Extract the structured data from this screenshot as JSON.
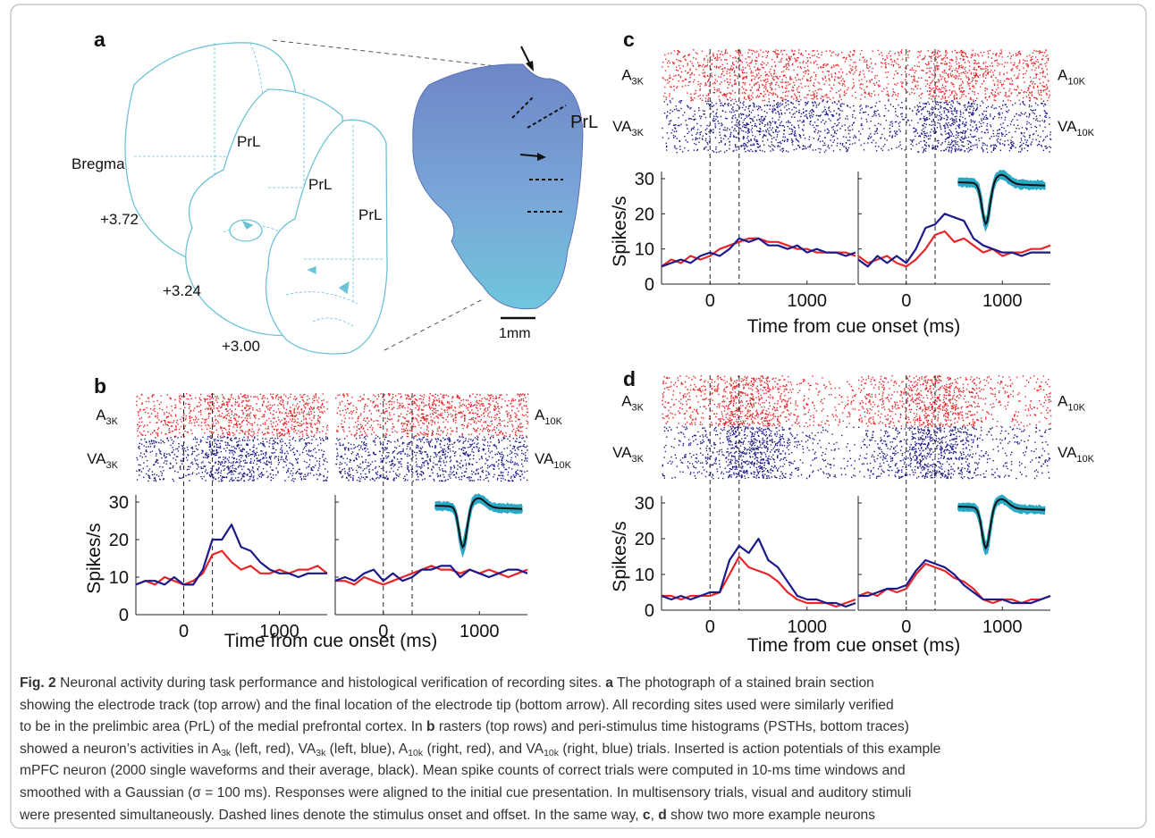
{
  "panels": {
    "a": {
      "label": "a",
      "bregma": "Bregma",
      "levels": [
        "+3.72",
        "+3.24",
        "+3.00"
      ],
      "atlas_regions": [
        "PrL",
        "PrL",
        "PrL"
      ],
      "photo_region": "PrL",
      "scale_bar": "1mm"
    },
    "b": {
      "label": "b",
      "xlabel": "Time from cue onset (ms)"
    },
    "c": {
      "label": "c",
      "xlabel": "Time from cue onset (ms)"
    },
    "d": {
      "label": "d",
      "xlabel": "Time from cue onset (ms)"
    }
  },
  "chart_data": [
    {
      "type": "line",
      "panel": "b",
      "ylabel": "Spikes/s",
      "x": [
        -500,
        -400,
        -300,
        -200,
        -100,
        0,
        100,
        200,
        300,
        400,
        500,
        600,
        700,
        800,
        900,
        1000,
        1100,
        1200,
        1300,
        1400,
        1500
      ],
      "series": [
        {
          "name": "A",
          "name_sub": "3K",
          "color": "#e8262a",
          "values": [
            8,
            9,
            8,
            10,
            9,
            8,
            9,
            11,
            16,
            17,
            14,
            12,
            13,
            11,
            11,
            12,
            11,
            12,
            12,
            13,
            11
          ]
        },
        {
          "name": "VA",
          "name_sub": "3K",
          "color": "#1c1a8a",
          "values": [
            8,
            9,
            9,
            8,
            10,
            8,
            8,
            12,
            20,
            20,
            24,
            18,
            17,
            14,
            12,
            11,
            11,
            10,
            11,
            11,
            11
          ]
        }
      ],
      "xlim": [
        -500,
        1500
      ],
      "xticks": [
        0,
        1000
      ],
      "ylim": [
        0,
        30
      ],
      "yticks": [
        0,
        10,
        20,
        30
      ],
      "event_markers": [
        0,
        300
      ]
    },
    {
      "type": "line",
      "panel": "b",
      "waveform_inset": true,
      "x": [
        -500,
        -400,
        -300,
        -200,
        -100,
        0,
        100,
        200,
        300,
        400,
        500,
        600,
        700,
        800,
        900,
        1000,
        1100,
        1200,
        1300,
        1400,
        1500
      ],
      "series": [
        {
          "name": "A",
          "name_sub": "10K",
          "color": "#e8262a",
          "values": [
            9,
            9,
            8,
            10,
            9,
            8,
            9,
            10,
            11,
            12,
            13,
            12,
            12,
            11,
            12,
            11,
            12,
            11,
            10,
            11,
            12
          ]
        },
        {
          "name": "VA",
          "name_sub": "10K",
          "color": "#1c1a8a",
          "values": [
            9,
            10,
            9,
            11,
            12,
            9,
            11,
            9,
            10,
            12,
            12,
            13,
            13,
            10,
            12,
            11,
            10,
            11,
            12,
            12,
            11
          ]
        }
      ],
      "xlim": [
        -500,
        1500
      ],
      "xticks": [
        0,
        1000
      ],
      "ylim": [
        0,
        30
      ],
      "yticks": [
        0,
        10,
        20,
        30
      ],
      "event_markers": [
        0,
        300
      ]
    },
    {
      "type": "line",
      "panel": "c",
      "ylabel": "Spikes/s",
      "x": [
        -500,
        -400,
        -300,
        -200,
        -100,
        0,
        100,
        200,
        300,
        400,
        500,
        600,
        700,
        800,
        900,
        1000,
        1100,
        1200,
        1300,
        1400,
        1500
      ],
      "series": [
        {
          "name": "A",
          "name_sub": "3K",
          "color": "#e8262a",
          "values": [
            5,
            7,
            6,
            8,
            7,
            8,
            10,
            11,
            12,
            13,
            13,
            12,
            12,
            11,
            10,
            10,
            9,
            9,
            9,
            9,
            8
          ]
        },
        {
          "name": "VA",
          "name_sub": "3K",
          "color": "#1c1a8a",
          "values": [
            5,
            6,
            7,
            6,
            8,
            9,
            8,
            10,
            13,
            12,
            13,
            11,
            11,
            10,
            11,
            9,
            10,
            9,
            9,
            8,
            9
          ]
        }
      ],
      "xlim": [
        -500,
        1500
      ],
      "xticks": [
        0,
        1000
      ],
      "ylim": [
        0,
        30
      ],
      "yticks": [
        0,
        10,
        20,
        30
      ],
      "event_markers": [
        0,
        300
      ]
    },
    {
      "type": "line",
      "panel": "c",
      "waveform_inset": true,
      "x": [
        -500,
        -400,
        -300,
        -200,
        -100,
        0,
        100,
        200,
        300,
        400,
        500,
        600,
        700,
        800,
        900,
        1000,
        1100,
        1200,
        1300,
        1400,
        1500
      ],
      "series": [
        {
          "name": "A",
          "name_sub": "10K",
          "color": "#e8262a",
          "values": [
            8,
            6,
            7,
            8,
            6,
            5,
            7,
            10,
            14,
            15,
            12,
            13,
            11,
            9,
            10,
            8,
            9,
            9,
            10,
            10,
            11
          ]
        },
        {
          "name": "VA",
          "name_sub": "10K",
          "color": "#1c1a8a",
          "values": [
            7,
            5,
            8,
            6,
            8,
            6,
            10,
            16,
            17,
            20,
            19,
            18,
            13,
            11,
            10,
            9,
            9,
            8,
            9,
            9,
            9
          ]
        }
      ],
      "xlim": [
        -500,
        1500
      ],
      "xticks": [
        0,
        1000
      ],
      "ylim": [
        0,
        30
      ],
      "yticks": [
        0,
        10,
        20,
        30
      ],
      "event_markers": [
        0,
        300
      ]
    },
    {
      "type": "line",
      "panel": "d",
      "ylabel": "Spikes/s",
      "x": [
        -500,
        -400,
        -300,
        -200,
        -100,
        0,
        100,
        200,
        300,
        400,
        500,
        600,
        700,
        800,
        900,
        1000,
        1100,
        1200,
        1300,
        1400,
        1500
      ],
      "series": [
        {
          "name": "A",
          "name_sub": "3K",
          "color": "#e8262a",
          "values": [
            4,
            4,
            3,
            4,
            4,
            4,
            5,
            10,
            15,
            12,
            11,
            10,
            8,
            5,
            3,
            2,
            2,
            2,
            1,
            2,
            3
          ]
        },
        {
          "name": "VA",
          "name_sub": "3K",
          "color": "#1c1a8a",
          "values": [
            4,
            3,
            4,
            3,
            4,
            5,
            5,
            14,
            18,
            16,
            20,
            14,
            12,
            8,
            4,
            3,
            3,
            2,
            2,
            1,
            2
          ]
        }
      ],
      "xlim": [
        -500,
        1500
      ],
      "xticks": [
        0,
        1000
      ],
      "ylim": [
        0,
        30
      ],
      "yticks": [
        0,
        10,
        20,
        30
      ],
      "event_markers": [
        0,
        300
      ]
    },
    {
      "type": "line",
      "panel": "d",
      "waveform_inset": true,
      "x": [
        -500,
        -400,
        -300,
        -200,
        -100,
        0,
        100,
        200,
        300,
        400,
        500,
        600,
        700,
        800,
        900,
        1000,
        1100,
        1200,
        1300,
        1400,
        1500
      ],
      "series": [
        {
          "name": "A",
          "name_sub": "10K",
          "color": "#e8262a",
          "values": [
            4,
            5,
            4,
            6,
            5,
            6,
            10,
            13,
            12,
            11,
            9,
            8,
            6,
            3,
            2,
            3,
            3,
            2,
            3,
            3,
            4
          ]
        },
        {
          "name": "VA",
          "name_sub": "10K",
          "color": "#1c1a8a",
          "values": [
            4,
            4,
            5,
            6,
            6,
            7,
            11,
            14,
            13,
            12,
            10,
            7,
            5,
            3,
            3,
            3,
            2,
            2,
            2,
            3,
            4
          ]
        }
      ],
      "xlim": [
        -500,
        1500
      ],
      "xticks": [
        0,
        1000
      ],
      "ylim": [
        0,
        30
      ],
      "yticks": [
        0,
        10,
        20,
        30
      ],
      "event_markers": [
        0,
        300
      ]
    }
  ],
  "caption": {
    "lines": [
      [
        {
          "text": "Fig. 2",
          "style": "bold"
        },
        {
          "text": "  Neuronal activity during task performance and histological verification of recording sites. "
        },
        {
          "text": "a",
          "style": "bold"
        },
        {
          "text": " The photograph of a stained brain section"
        }
      ],
      [
        {
          "text": "showing the electrode track (top arrow) and the final location of the electrode tip (bottom arrow). All recording sites used were similarly verified"
        }
      ],
      [
        {
          "text": "to be in the prelimbic area (PrL) of the medial prefrontal cortex. In "
        },
        {
          "text": "b",
          "style": "bold"
        },
        {
          "text": " rasters (top rows) and peri-stimulus time histograms (PSTHs, bottom traces)"
        }
      ],
      [
        {
          "text": "showed a neuron’s activities in A"
        },
        {
          "text": "3k",
          "style": "sub"
        },
        {
          "text": " (left, red), VA"
        },
        {
          "text": "3k",
          "style": "sub"
        },
        {
          "text": " (left, blue), A"
        },
        {
          "text": "10k",
          "style": "sub"
        },
        {
          "text": " (right, red), and VA"
        },
        {
          "text": "10k",
          "style": "sub"
        },
        {
          "text": " (right, blue) trials. Inserted is action potentials of this example"
        }
      ],
      [
        {
          "text": "mPFC neuron (2000 single waveforms and their average, black). Mean spike counts of correct trials were computed in 10-ms time windows and"
        }
      ],
      [
        {
          "text": "smoothed with a Gaussian (σ = 100 ms). Responses were aligned to the initial cue presentation. In multisensory trials, visual and auditory stimuli"
        }
      ],
      [
        {
          "text": "were presented simultaneously. Dashed lines denote the stimulus onset and offset. In the same way, "
        },
        {
          "text": "c",
          "style": "bold"
        },
        {
          "text": ", "
        },
        {
          "text": "d",
          "style": "bold"
        },
        {
          "text": " show two more example neurons"
        }
      ]
    ]
  }
}
